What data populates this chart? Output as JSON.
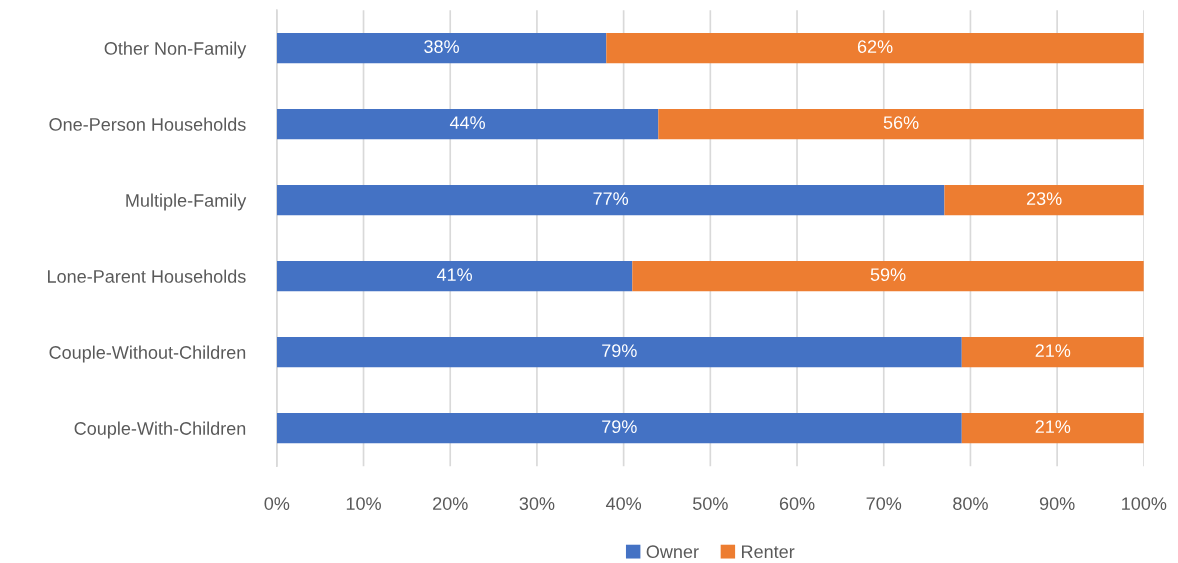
{
  "chart_data": {
    "type": "bar",
    "orientation": "horizontal",
    "stacked": true,
    "categories": [
      "Other Non-Family",
      "One-Person Households",
      "Multiple-Family",
      "Lone-Parent Households",
      "Couple-Without-Children",
      "Couple-With-Children"
    ],
    "series": [
      {
        "name": "Owner",
        "color": "#4472c4",
        "values": [
          38,
          44,
          77,
          41,
          79,
          79
        ],
        "value_labels": [
          "38%",
          "44%",
          "77%",
          "41%",
          "79%",
          "79%"
        ]
      },
      {
        "name": "Renter",
        "color": "#ed7d31",
        "values": [
          62,
          56,
          23,
          59,
          21,
          21
        ],
        "value_labels": [
          "62%",
          "56%",
          "23%",
          "59%",
          "21%",
          "21%"
        ]
      }
    ],
    "xlim": [
      0,
      100
    ],
    "xticks": [
      {
        "value": 0,
        "label": "0%"
      },
      {
        "value": 10,
        "label": "10%"
      },
      {
        "value": 20,
        "label": "20%"
      },
      {
        "value": 30,
        "label": "30%"
      },
      {
        "value": 40,
        "label": "40%"
      },
      {
        "value": 50,
        "label": "50%"
      },
      {
        "value": 60,
        "label": "60%"
      },
      {
        "value": 70,
        "label": "70%"
      },
      {
        "value": 80,
        "label": "80%"
      },
      {
        "value": 90,
        "label": "90%"
      },
      {
        "value": 100,
        "label": "100%"
      }
    ],
    "grid": "x",
    "legend": "bottom"
  }
}
